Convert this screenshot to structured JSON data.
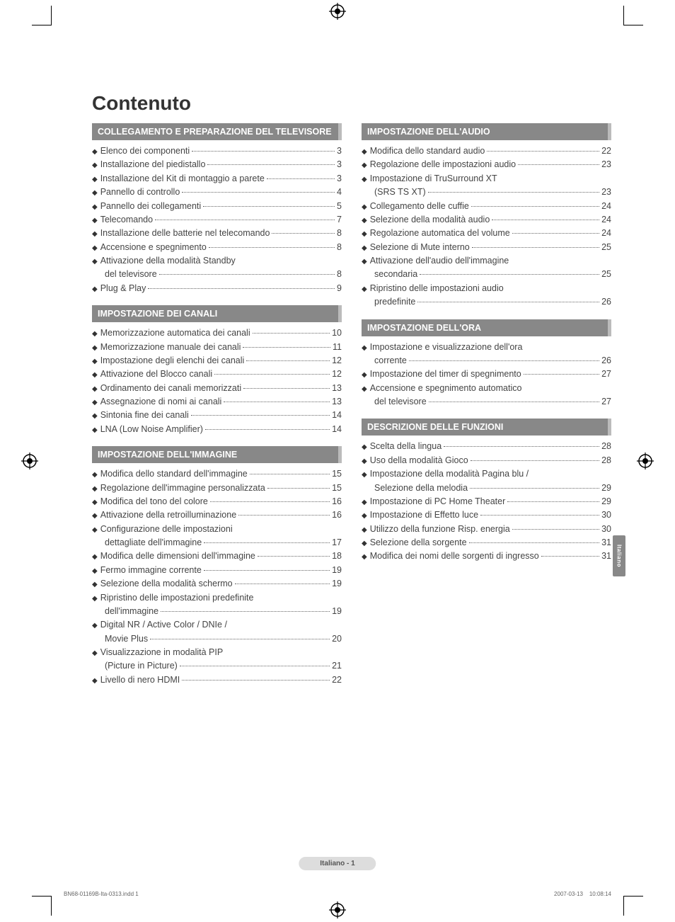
{
  "title": "Contenuto",
  "side_tab": "Italiano",
  "page_footer": "Italiano - 1",
  "footnote_left": "BN68-01169B-Ita-0313.indd   1",
  "footnote_right": "2007-03-13      10:08:14",
  "sections_left": [
    {
      "header": "COLLEGAMENTO E PREPARAZIONE DEL TELEVISORE",
      "items": [
        {
          "label": "Elenco dei componenti",
          "page": "3"
        },
        {
          "label": "Installazione del piedistallo",
          "page": "3"
        },
        {
          "label": "Installazione del Kit di montaggio a parete",
          "page": "3"
        },
        {
          "label": "Pannello di controllo",
          "page": "4"
        },
        {
          "label": "Pannello dei collegamenti",
          "page": "5"
        },
        {
          "label": "Telecomando",
          "page": "7"
        },
        {
          "label": "Installazione delle batterie nel telecomando",
          "page": "8"
        },
        {
          "label": "Accensione e spegnimento",
          "page": "8"
        },
        {
          "label": "Attivazione della modalità Standby",
          "cont": "del televisore",
          "page": "8"
        },
        {
          "label": "Plug & Play",
          "page": "9"
        }
      ]
    },
    {
      "header": "IMPOSTAZIONE DEI CANALI",
      "items": [
        {
          "label": "Memorizzazione automatica dei canali",
          "page": "10"
        },
        {
          "label": "Memorizzazione manuale dei canali",
          "page": "11"
        },
        {
          "label": "Impostazione degli elenchi dei canali",
          "page": "12"
        },
        {
          "label": "Attivazione del Blocco canali",
          "page": "12"
        },
        {
          "label": "Ordinamento dei canali memorizzati",
          "page": "13"
        },
        {
          "label": "Assegnazione di nomi ai canali",
          "page": "13"
        },
        {
          "label": "Sintonia fine dei canali",
          "page": "14"
        },
        {
          "label": "LNA (Low Noise Amplifier)",
          "page": "14"
        }
      ]
    },
    {
      "header": "IMPOSTAZIONE DELL'IMMAGINE",
      "items": [
        {
          "label": "Modifica dello standard dell'immagine",
          "page": "15"
        },
        {
          "label": "Regolazione dell'immagine personalizzata",
          "page": "15"
        },
        {
          "label": "Modifica del tono del colore",
          "page": "16"
        },
        {
          "label": "Attivazione della retroilluminazione",
          "page": "16"
        },
        {
          "label": "Configurazione delle impostazioni",
          "cont": "dettagliate dell'immagine",
          "page": "17"
        },
        {
          "label": "Modifica delle dimensioni dell'immagine",
          "page": "18"
        },
        {
          "label": "Fermo immagine corrente",
          "page": "19"
        },
        {
          "label": "Selezione della modalità schermo",
          "page": "19"
        },
        {
          "label": "Ripristino delle impostazioni predefinite",
          "cont": "dell'immagine",
          "page": "19"
        },
        {
          "label": "Digital NR / Active Color / DNIe /",
          "cont": "Movie Plus",
          "page": "20"
        },
        {
          "label": "Visualizzazione in modalità  PIP",
          "cont": "(Picture in Picture)",
          "page": "21"
        },
        {
          "label": "Livello di nero HDMI",
          "page": "22"
        }
      ]
    }
  ],
  "sections_right": [
    {
      "header": "IMPOSTAZIONE DELL'AUDIO",
      "items": [
        {
          "label": "Modifica dello standard audio",
          "page": "22"
        },
        {
          "label": "Regolazione delle impostazioni audio",
          "page": "23"
        },
        {
          "label": "Impostazione di TruSurround XT",
          "cont": "(SRS TS XT)",
          "page": "23"
        },
        {
          "label": "Collegamento delle cuffie",
          "page": "24"
        },
        {
          "label": "Selezione della modalità audio",
          "page": "24"
        },
        {
          "label": "Regolazione automatica del volume",
          "page": "24"
        },
        {
          "label": "Selezione di Mute interno",
          "page": "25"
        },
        {
          "label": "Attivazione dell'audio dell'immagine",
          "cont": "secondaria",
          "page": "25"
        },
        {
          "label": "Ripristino delle impostazioni audio",
          "cont": "predefinite",
          "page": "26"
        }
      ]
    },
    {
      "header": "IMPOSTAZIONE DELL'ORA",
      "items": [
        {
          "label": "Impostazione e visualizzazione dell'ora",
          "cont": "corrente",
          "page": "26"
        },
        {
          "label": "Impostazione del timer di spegnimento",
          "page": "27"
        },
        {
          "label": "Accensione e spegnimento automatico",
          "cont": "del televisore",
          "page": "27"
        }
      ]
    },
    {
      "header": "DESCRIZIONE DELLE FUNZIONI",
      "items": [
        {
          "label": "Scelta della lingua",
          "page": "28"
        },
        {
          "label": "Uso della modalità Gioco",
          "page": "28"
        },
        {
          "label": "Impostazione della modalità Pagina blu /",
          "cont": "Selezione della melodia",
          "page": "29"
        },
        {
          "label": "Impostazione di PC Home Theater",
          "page": "29"
        },
        {
          "label": "Impostazione di Effetto luce",
          "page": "30"
        },
        {
          "label": "Utilizzo della funzione Risp. energia",
          "page": "30"
        },
        {
          "label": "Selezione della sorgente",
          "page": "31"
        },
        {
          "label": "Modifica dei nomi delle sorgenti di ingresso",
          "page": "31"
        }
      ]
    }
  ],
  "colors": {
    "header_bg": "#888888",
    "header_text": "#ffffff",
    "body_text": "#444444",
    "title_text": "#333333",
    "side_tab_bg": "#888888",
    "footer_bg": "#dddddd"
  }
}
